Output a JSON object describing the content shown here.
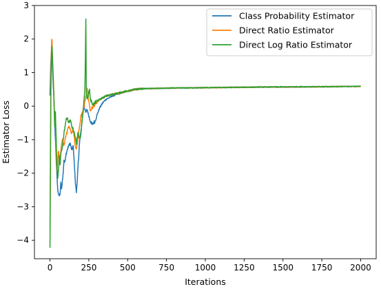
{
  "chart_data": {
    "type": "line",
    "xlabel": "Iterations",
    "ylabel": "Estimator Loss",
    "xlim": [
      -100,
      2100
    ],
    "ylim": [
      -4.55,
      3.0
    ],
    "xticks": [
      0,
      250,
      500,
      750,
      1000,
      1250,
      1500,
      1750,
      2000
    ],
    "yticks": [
      -4,
      -3,
      -2,
      -1,
      0,
      1,
      2,
      3
    ],
    "grid": false,
    "legend_position": "top-right",
    "series": [
      {
        "name": "Class Probability Estimator",
        "color": "#1f77b4",
        "points": [
          [
            0,
            0.3
          ],
          [
            5,
            1.2
          ],
          [
            10,
            1.7
          ],
          [
            15,
            1.3
          ],
          [
            20,
            0.7
          ],
          [
            25,
            0.3
          ],
          [
            30,
            -0.4
          ],
          [
            35,
            -1.0
          ],
          [
            40,
            -1.6
          ],
          [
            45,
            -2.1
          ],
          [
            50,
            -2.5
          ],
          [
            55,
            -2.6
          ],
          [
            60,
            -2.7
          ],
          [
            65,
            -2.6
          ],
          [
            70,
            -2.3
          ],
          [
            75,
            -2.5
          ],
          [
            80,
            -2.2
          ],
          [
            85,
            -2.0
          ],
          [
            90,
            -1.6
          ],
          [
            95,
            -1.7
          ],
          [
            100,
            -1.5
          ],
          [
            110,
            -1.3
          ],
          [
            120,
            -1.2
          ],
          [
            130,
            -1.1
          ],
          [
            140,
            -1.3
          ],
          [
            150,
            -1.2
          ],
          [
            160,
            -2.0
          ],
          [
            165,
            -2.4
          ],
          [
            170,
            -2.55
          ],
          [
            175,
            -2.3
          ],
          [
            180,
            -1.8
          ],
          [
            185,
            -1.5
          ],
          [
            190,
            -1.1
          ],
          [
            200,
            -0.7
          ],
          [
            210,
            -0.3
          ],
          [
            220,
            0.0
          ],
          [
            230,
            -0.2
          ],
          [
            240,
            -0.1
          ],
          [
            250,
            -0.3
          ],
          [
            260,
            -0.45
          ],
          [
            270,
            -0.55
          ],
          [
            280,
            -0.5
          ],
          [
            290,
            -0.45
          ],
          [
            300,
            -0.3
          ],
          [
            320,
            -0.05
          ],
          [
            340,
            0.1
          ],
          [
            360,
            0.2
          ],
          [
            380,
            0.25
          ],
          [
            400,
            0.3
          ],
          [
            430,
            0.35
          ],
          [
            460,
            0.4
          ],
          [
            500,
            0.45
          ],
          [
            550,
            0.5
          ],
          [
            600,
            0.52
          ],
          [
            700,
            0.53
          ],
          [
            800,
            0.54
          ],
          [
            1000,
            0.55
          ],
          [
            1200,
            0.56
          ],
          [
            1400,
            0.57
          ],
          [
            1600,
            0.57
          ],
          [
            1800,
            0.58
          ],
          [
            2000,
            0.59
          ]
        ]
      },
      {
        "name": "Direct Ratio Estimator",
        "color": "#ff7f0e",
        "points": [
          [
            0,
            -3.6
          ],
          [
            3,
            -1.0
          ],
          [
            6,
            1.0
          ],
          [
            10,
            1.9
          ],
          [
            13,
            2.0
          ],
          [
            16,
            1.5
          ],
          [
            20,
            1.0
          ],
          [
            25,
            0.4
          ],
          [
            30,
            -0.5
          ],
          [
            35,
            -0.2
          ],
          [
            40,
            -1.5
          ],
          [
            45,
            -1.9
          ],
          [
            50,
            -1.6
          ],
          [
            55,
            -1.3
          ],
          [
            60,
            -1.7
          ],
          [
            65,
            -1.5
          ],
          [
            70,
            -1.3
          ],
          [
            80,
            -1.0
          ],
          [
            90,
            -1.2
          ],
          [
            100,
            -0.9
          ],
          [
            110,
            -0.8
          ],
          [
            120,
            -0.6
          ],
          [
            130,
            -0.7
          ],
          [
            140,
            -0.8
          ],
          [
            150,
            -0.7
          ],
          [
            160,
            -1.1
          ],
          [
            170,
            -1.3
          ],
          [
            180,
            -1.0
          ],
          [
            190,
            -0.6
          ],
          [
            200,
            -0.3
          ],
          [
            210,
            -0.2
          ],
          [
            220,
            0.0
          ],
          [
            230,
            0.3
          ],
          [
            240,
            0.5
          ],
          [
            250,
            0.1
          ],
          [
            260,
            -0.1
          ],
          [
            270,
            -0.05
          ],
          [
            280,
            0.0
          ],
          [
            300,
            0.1
          ],
          [
            320,
            0.2
          ],
          [
            340,
            0.25
          ],
          [
            360,
            0.3
          ],
          [
            400,
            0.35
          ],
          [
            450,
            0.4
          ],
          [
            500,
            0.45
          ],
          [
            550,
            0.5
          ],
          [
            600,
            0.52
          ],
          [
            700,
            0.53
          ],
          [
            800,
            0.54
          ],
          [
            1000,
            0.55
          ],
          [
            1200,
            0.56
          ],
          [
            1400,
            0.57
          ],
          [
            1600,
            0.57
          ],
          [
            1800,
            0.58
          ],
          [
            2000,
            0.59
          ]
        ]
      },
      {
        "name": "Direct Log Ratio Estimator",
        "color": "#2ca02c",
        "points": [
          [
            0,
            -4.25
          ],
          [
            3,
            -2.0
          ],
          [
            6,
            0.5
          ],
          [
            10,
            1.6
          ],
          [
            13,
            1.8
          ],
          [
            16,
            1.4
          ],
          [
            20,
            0.8
          ],
          [
            25,
            0.3
          ],
          [
            30,
            -0.6
          ],
          [
            35,
            -0.2
          ],
          [
            40,
            -1.0
          ],
          [
            45,
            -1.8
          ],
          [
            50,
            -2.2
          ],
          [
            55,
            -1.9
          ],
          [
            60,
            -1.5
          ],
          [
            65,
            -1.8
          ],
          [
            70,
            -1.4
          ],
          [
            80,
            -1.2
          ],
          [
            90,
            -0.8
          ],
          [
            100,
            -0.5
          ],
          [
            110,
            -0.3
          ],
          [
            120,
            -0.5
          ],
          [
            130,
            -0.4
          ],
          [
            140,
            -0.6
          ],
          [
            150,
            -0.7
          ],
          [
            160,
            -0.9
          ],
          [
            170,
            -1.1
          ],
          [
            180,
            -0.8
          ],
          [
            190,
            -1.0
          ],
          [
            200,
            -0.8
          ],
          [
            210,
            -0.3
          ],
          [
            220,
            0.2
          ],
          [
            225,
            0.6
          ],
          [
            228,
            1.5
          ],
          [
            231,
            2.6
          ],
          [
            234,
            0.4
          ],
          [
            238,
            0.2
          ],
          [
            245,
            0.3
          ],
          [
            250,
            0.4
          ],
          [
            255,
            0.5
          ],
          [
            260,
            0.2
          ],
          [
            270,
            0.1
          ],
          [
            280,
            0.05
          ],
          [
            300,
            0.15
          ],
          [
            320,
            0.2
          ],
          [
            340,
            0.25
          ],
          [
            360,
            0.3
          ],
          [
            400,
            0.35
          ],
          [
            450,
            0.4
          ],
          [
            500,
            0.45
          ],
          [
            550,
            0.5
          ],
          [
            600,
            0.52
          ],
          [
            700,
            0.53
          ],
          [
            800,
            0.54
          ],
          [
            1000,
            0.55
          ],
          [
            1200,
            0.56
          ],
          [
            1400,
            0.57
          ],
          [
            1600,
            0.58
          ],
          [
            1800,
            0.58
          ],
          [
            2000,
            0.59
          ]
        ]
      }
    ]
  }
}
